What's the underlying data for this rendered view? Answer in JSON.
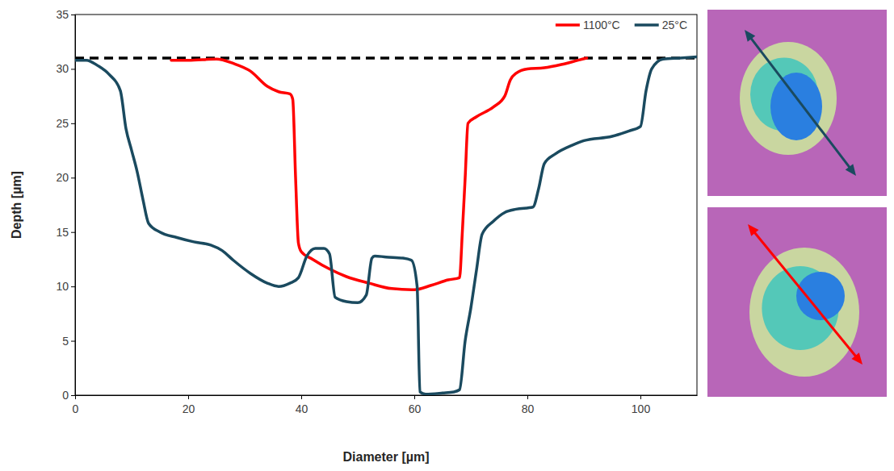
{
  "chart_data": {
    "type": "line",
    "x_label": "Diameter [µm]",
    "y_label": "Depth [µm]",
    "xlim": [
      0,
      110
    ],
    "xticks": [
      0,
      20,
      40,
      60,
      80,
      100
    ],
    "ylim": [
      0,
      35
    ],
    "yticks": [
      0,
      5,
      10,
      15,
      20,
      25,
      30,
      35
    ],
    "hline": 31,
    "legend": "upper right",
    "series": [
      {
        "name": "1100°C",
        "color": "#ff0000",
        "x": [
          17,
          20,
          25,
          28,
          31,
          34,
          36,
          38,
          38.5,
          39,
          39.5,
          40,
          42,
          45,
          48,
          52,
          56,
          60,
          63,
          66,
          68,
          68.5,
          69,
          69.5,
          71,
          74,
          76,
          77,
          78,
          80,
          83,
          86,
          89,
          90.5
        ],
        "values": [
          30.8,
          30.8,
          30.9,
          30.5,
          29.8,
          28.4,
          27.9,
          27.7,
          27.2,
          20,
          14,
          13.2,
          12.5,
          11.6,
          10.9,
          10.3,
          9.8,
          9.7,
          10.1,
          10.6,
          10.8,
          15,
          20,
          25,
          25.6,
          26.5,
          27.5,
          29,
          29.6,
          30,
          30.1,
          30.4,
          30.8,
          31
        ]
      },
      {
        "name": "25°C",
        "color": "#1a4a5f",
        "x": [
          0,
          2,
          4,
          6,
          8,
          9,
          10,
          11,
          12,
          13,
          15,
          18,
          21,
          24,
          26,
          28,
          31,
          34,
          36,
          38,
          39.5,
          41,
          42.5,
          44,
          45,
          46,
          48,
          50,
          51.5,
          52.5,
          53,
          55,
          58,
          59.5,
          60.5,
          61,
          62,
          65,
          67,
          68,
          69,
          70,
          71,
          72,
          74,
          76,
          78,
          81,
          82,
          83,
          85,
          88,
          90,
          95,
          98,
          100,
          101,
          102,
          104,
          107,
          110
        ],
        "values": [
          30.8,
          30.8,
          30.3,
          29.5,
          28,
          24.5,
          22.5,
          20.5,
          18,
          15.8,
          15,
          14.5,
          14.1,
          13.8,
          13.3,
          12.4,
          11.2,
          10.3,
          10,
          10.3,
          10.8,
          12.8,
          13.5,
          13.5,
          13,
          9,
          8.6,
          8.5,
          9.2,
          12.6,
          12.8,
          12.7,
          12.6,
          12.4,
          10,
          0.3,
          0.1,
          0.2,
          0.3,
          0.5,
          5,
          8,
          11.5,
          14.8,
          16,
          16.8,
          17.1,
          17.3,
          19,
          21.3,
          22.2,
          23,
          23.4,
          23.8,
          24.3,
          24.7,
          28,
          30,
          30.9,
          31,
          31.1
        ]
      }
    ]
  }
}
